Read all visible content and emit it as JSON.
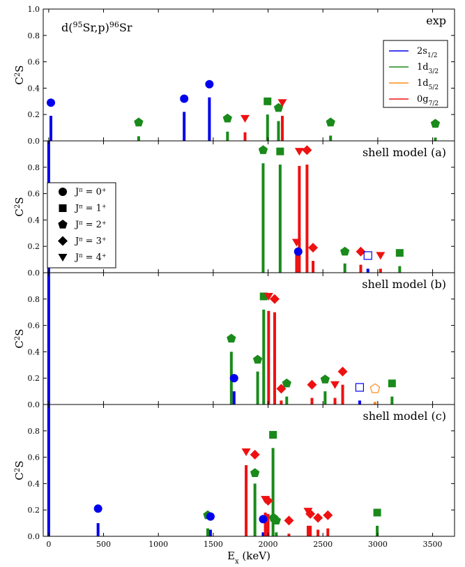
{
  "chart_data": {
    "type": "bar",
    "xlabel_base": "E",
    "xlabel_sub": "x",
    "xlabel_unit": " (keV)",
    "ylabel_base": "C",
    "ylabel_sup": "2",
    "ylabel_tail": "S",
    "xlim": [
      -50,
      3700
    ],
    "xticks": [
      0,
      500,
      1000,
      1500,
      2000,
      2500,
      3000,
      3500
    ],
    "reaction": {
      "pre": "d(",
      "sup1": "95",
      "mid": "Sr,p)",
      "sup2": "96",
      "post": "Sr"
    },
    "orbital_legend": [
      {
        "base": "2s",
        "sub": "1/2",
        "color": "#0000ee"
      },
      {
        "base": "1d",
        "sub": "3/2",
        "color": "#1a8a1a"
      },
      {
        "base": "1d",
        "sub": "5/2",
        "color": "#ff8c1a"
      },
      {
        "base": "0g",
        "sub": "7/2",
        "color": "#ee1111"
      }
    ],
    "spin_legend": [
      {
        "shape": "circle",
        "base": "J",
        "sup1": "π",
        "mid": " = 0",
        "sup2": "+"
      },
      {
        "shape": "square",
        "base": "J",
        "sup1": "π",
        "mid": " = 1",
        "sup2": "+"
      },
      {
        "shape": "pentagon",
        "base": "J",
        "sup1": "π",
        "mid": " = 2",
        "sup2": "+"
      },
      {
        "shape": "diamond",
        "base": "J",
        "sup1": "π",
        "mid": " = 3",
        "sup2": "+"
      },
      {
        "shape": "triangle",
        "base": "J",
        "sup1": "π",
        "mid": " = 4",
        "sup2": "+"
      }
    ],
    "panels": [
      {
        "label": "exp",
        "ylim": [
          0,
          1.0
        ],
        "yticks": [
          0.0,
          0.2,
          0.4,
          0.6,
          0.8,
          1.0
        ],
        "bars": [
          {
            "x": 20,
            "y": 0.19,
            "orbital": "2s1/2"
          },
          {
            "x": 820,
            "y": 0.035,
            "orbital": "1d3/2"
          },
          {
            "x": 1235,
            "y": 0.22,
            "orbital": "2s1/2"
          },
          {
            "x": 1465,
            "y": 0.33,
            "orbital": "2s1/2"
          },
          {
            "x": 1630,
            "y": 0.07,
            "orbital": "1d3/2"
          },
          {
            "x": 1790,
            "y": 0.065,
            "orbital": "0g7/2"
          },
          {
            "x": 1995,
            "y": 0.2,
            "orbital": "1d3/2"
          },
          {
            "x": 2095,
            "y": 0.15,
            "orbital": "1d3/2"
          },
          {
            "x": 2130,
            "y": 0.19,
            "orbital": "0g7/2"
          },
          {
            "x": 2570,
            "y": 0.04,
            "orbital": "1d3/2"
          },
          {
            "x": 3525,
            "y": 0.025,
            "orbital": "1d3/2"
          }
        ],
        "markers": [
          {
            "x": 20,
            "y": 0.29,
            "shape": "circle",
            "orbital": "2s1/2",
            "filled": true
          },
          {
            "x": 820,
            "y": 0.14,
            "shape": "pentagon",
            "orbital": "1d3/2",
            "filled": true
          },
          {
            "x": 1235,
            "y": 0.32,
            "shape": "circle",
            "orbital": "2s1/2",
            "filled": true
          },
          {
            "x": 1465,
            "y": 0.43,
            "shape": "circle",
            "orbital": "2s1/2",
            "filled": true
          },
          {
            "x": 1630,
            "y": 0.17,
            "shape": "pentagon",
            "orbital": "1d3/2",
            "filled": true
          },
          {
            "x": 1790,
            "y": 0.17,
            "shape": "triangle",
            "orbital": "0g7/2",
            "filled": true
          },
          {
            "x": 1995,
            "y": 0.3,
            "shape": "square",
            "orbital": "1d3/2",
            "filled": true
          },
          {
            "x": 2095,
            "y": 0.25,
            "shape": "pentagon",
            "orbital": "1d3/2",
            "filled": true
          },
          {
            "x": 2130,
            "y": 0.29,
            "shape": "triangle",
            "orbital": "0g7/2",
            "filled": true
          },
          {
            "x": 2570,
            "y": 0.14,
            "shape": "pentagon",
            "orbital": "1d3/2",
            "filled": true
          },
          {
            "x": 3525,
            "y": 0.13,
            "shape": "pentagon",
            "orbital": "1d3/2",
            "filled": true
          }
        ]
      },
      {
        "label": "shell model (a)",
        "ylim": [
          0,
          1.0
        ],
        "yticks": [
          0.0,
          0.2,
          0.4,
          0.6,
          0.8
        ],
        "bars": [
          {
            "x": 0,
            "y": 1.0,
            "orbital": "2s1/2"
          },
          {
            "x": 1955,
            "y": 0.83,
            "orbital": "1d3/2"
          },
          {
            "x": 2110,
            "y": 0.82,
            "orbital": "1d3/2"
          },
          {
            "x": 2260,
            "y": 0.18,
            "orbital": "0g7/2"
          },
          {
            "x": 2285,
            "y": 0.81,
            "orbital": "0g7/2"
          },
          {
            "x": 2355,
            "y": 0.82,
            "orbital": "0g7/2"
          },
          {
            "x": 2410,
            "y": 0.09,
            "orbital": "0g7/2"
          },
          {
            "x": 2700,
            "y": 0.07,
            "orbital": "1d3/2"
          },
          {
            "x": 2845,
            "y": 0.06,
            "orbital": "0g7/2"
          },
          {
            "x": 2910,
            "y": 0.03,
            "orbital": "2s1/2"
          },
          {
            "x": 3025,
            "y": 0.03,
            "orbital": "0g7/2"
          },
          {
            "x": 3200,
            "y": 0.05,
            "orbital": "1d3/2"
          }
        ],
        "markers": [
          {
            "x": 1955,
            "y": 0.93,
            "shape": "pentagon",
            "orbital": "1d3/2",
            "filled": true
          },
          {
            "x": 2110,
            "y": 0.92,
            "shape": "square",
            "orbital": "1d3/2",
            "filled": true
          },
          {
            "x": 2285,
            "y": 0.92,
            "shape": "triangle",
            "orbital": "0g7/2",
            "filled": true
          },
          {
            "x": 2355,
            "y": 0.93,
            "shape": "diamond",
            "orbital": "0g7/2",
            "filled": true
          },
          {
            "x": 2260,
            "y": 0.23,
            "shape": "triangle",
            "orbital": "0g7/2",
            "filled": true
          },
          {
            "x": 2275,
            "y": 0.16,
            "shape": "circle",
            "orbital": "2s1/2",
            "filled": true
          },
          {
            "x": 2410,
            "y": 0.19,
            "shape": "diamond",
            "orbital": "0g7/2",
            "filled": true
          },
          {
            "x": 2700,
            "y": 0.16,
            "shape": "pentagon",
            "orbital": "1d3/2",
            "filled": true
          },
          {
            "x": 2845,
            "y": 0.16,
            "shape": "diamond",
            "orbital": "0g7/2",
            "filled": true
          },
          {
            "x": 2910,
            "y": 0.13,
            "shape": "square",
            "orbital": "2s1/2",
            "filled": false
          },
          {
            "x": 3025,
            "y": 0.13,
            "shape": "triangle",
            "orbital": "0g7/2",
            "filled": true
          },
          {
            "x": 3200,
            "y": 0.15,
            "shape": "square",
            "orbital": "1d3/2",
            "filled": true
          }
        ]
      },
      {
        "label": "shell model (b)",
        "ylim": [
          0,
          1.0
        ],
        "yticks": [
          0.0,
          0.2,
          0.4,
          0.6,
          0.8
        ],
        "bars": [
          {
            "x": 0,
            "y": 1.0,
            "orbital": "2s1/2"
          },
          {
            "x": 1665,
            "y": 0.4,
            "orbital": "1d3/2"
          },
          {
            "x": 1690,
            "y": 0.1,
            "orbital": "2s1/2"
          },
          {
            "x": 1905,
            "y": 0.25,
            "orbital": "1d3/2"
          },
          {
            "x": 1960,
            "y": 0.72,
            "orbital": "1d3/2"
          },
          {
            "x": 2005,
            "y": 0.71,
            "orbital": "0g7/2"
          },
          {
            "x": 2060,
            "y": 0.7,
            "orbital": "0g7/2"
          },
          {
            "x": 2120,
            "y": 0.03,
            "orbital": "0g7/2"
          },
          {
            "x": 2170,
            "y": 0.06,
            "orbital": "1d3/2"
          },
          {
            "x": 2400,
            "y": 0.05,
            "orbital": "0g7/2"
          },
          {
            "x": 2520,
            "y": 0.1,
            "orbital": "1d3/2"
          },
          {
            "x": 2610,
            "y": 0.05,
            "orbital": "0g7/2"
          },
          {
            "x": 2680,
            "y": 0.15,
            "orbital": "0g7/2"
          },
          {
            "x": 2835,
            "y": 0.03,
            "orbital": "2s1/2"
          },
          {
            "x": 2975,
            "y": 0.02,
            "orbital": "1d5/2"
          },
          {
            "x": 3130,
            "y": 0.06,
            "orbital": "1d3/2"
          }
        ],
        "markers": [
          {
            "x": 1665,
            "y": 0.5,
            "shape": "pentagon",
            "orbital": "1d3/2",
            "filled": true
          },
          {
            "x": 1690,
            "y": 0.2,
            "shape": "circle",
            "orbital": "2s1/2",
            "filled": true
          },
          {
            "x": 1905,
            "y": 0.34,
            "shape": "pentagon",
            "orbital": "1d3/2",
            "filled": true
          },
          {
            "x": 1960,
            "y": 0.82,
            "shape": "square",
            "orbital": "1d3/2",
            "filled": true
          },
          {
            "x": 2005,
            "y": 0.82,
            "shape": "triangle",
            "orbital": "0g7/2",
            "filled": true
          },
          {
            "x": 2060,
            "y": 0.8,
            "shape": "diamond",
            "orbital": "0g7/2",
            "filled": true
          },
          {
            "x": 2120,
            "y": 0.12,
            "shape": "diamond",
            "orbital": "0g7/2",
            "filled": true
          },
          {
            "x": 2170,
            "y": 0.16,
            "shape": "pentagon",
            "orbital": "1d3/2",
            "filled": true
          },
          {
            "x": 2400,
            "y": 0.15,
            "shape": "diamond",
            "orbital": "0g7/2",
            "filled": true
          },
          {
            "x": 2520,
            "y": 0.19,
            "shape": "pentagon",
            "orbital": "1d3/2",
            "filled": true
          },
          {
            "x": 2610,
            "y": 0.15,
            "shape": "triangle",
            "orbital": "0g7/2",
            "filled": true
          },
          {
            "x": 2680,
            "y": 0.25,
            "shape": "diamond",
            "orbital": "0g7/2",
            "filled": true
          },
          {
            "x": 2835,
            "y": 0.13,
            "shape": "square",
            "orbital": "2s1/2",
            "filled": false
          },
          {
            "x": 2975,
            "y": 0.12,
            "shape": "pentagon",
            "orbital": "1d5/2",
            "filled": false
          },
          {
            "x": 3130,
            "y": 0.16,
            "shape": "square",
            "orbital": "1d3/2",
            "filled": true
          }
        ]
      },
      {
        "label": "shell model (c)",
        "ylim": [
          0,
          1.0
        ],
        "yticks": [
          0.0,
          0.2,
          0.4,
          0.6,
          0.8
        ],
        "bars": [
          {
            "x": 0,
            "y": 1.0,
            "orbital": "2s1/2"
          },
          {
            "x": 450,
            "y": 0.1,
            "orbital": "2s1/2"
          },
          {
            "x": 1450,
            "y": 0.06,
            "orbital": "1d3/2"
          },
          {
            "x": 1475,
            "y": 0.05,
            "orbital": "2s1/2"
          },
          {
            "x": 1800,
            "y": 0.54,
            "orbital": "0g7/2"
          },
          {
            "x": 1880,
            "y": 0.4,
            "orbital": "1d3/2"
          },
          {
            "x": 1955,
            "y": 0.03,
            "orbital": "2s1/2"
          },
          {
            "x": 1975,
            "y": 0.18,
            "orbital": "0g7/2"
          },
          {
            "x": 2000,
            "y": 0.17,
            "orbital": "0g7/2"
          },
          {
            "x": 2045,
            "y": 0.67,
            "orbital": "1d3/2"
          },
          {
            "x": 2075,
            "y": 0.03,
            "orbital": "1d3/2"
          },
          {
            "x": 2190,
            "y": 0.02,
            "orbital": "0g7/2"
          },
          {
            "x": 2365,
            "y": 0.08,
            "orbital": "0g7/2"
          },
          {
            "x": 2385,
            "y": 0.08,
            "orbital": "0g7/2"
          },
          {
            "x": 2455,
            "y": 0.05,
            "orbital": "0g7/2"
          },
          {
            "x": 2545,
            "y": 0.06,
            "orbital": "0g7/2"
          },
          {
            "x": 2995,
            "y": 0.08,
            "orbital": "1d3/2"
          }
        ],
        "markers": [
          {
            "x": 450,
            "y": 0.21,
            "shape": "circle",
            "orbital": "2s1/2",
            "filled": true
          },
          {
            "x": 1450,
            "y": 0.16,
            "shape": "pentagon",
            "orbital": "1d3/2",
            "filled": true
          },
          {
            "x": 1475,
            "y": 0.15,
            "shape": "circle",
            "orbital": "2s1/2",
            "filled": true
          },
          {
            "x": 1800,
            "y": 0.64,
            "shape": "triangle",
            "orbital": "0g7/2",
            "filled": true
          },
          {
            "x": 1880,
            "y": 0.48,
            "shape": "pentagon",
            "orbital": "1d3/2",
            "filled": true
          },
          {
            "x": 1880,
            "y": 0.62,
            "shape": "diamond",
            "orbital": "0g7/2",
            "filled": true
          },
          {
            "x": 1955,
            "y": 0.13,
            "shape": "circle",
            "orbital": "2s1/2",
            "filled": true
          },
          {
            "x": 1975,
            "y": 0.28,
            "shape": "triangle",
            "orbital": "0g7/2",
            "filled": true
          },
          {
            "x": 2000,
            "y": 0.27,
            "shape": "diamond",
            "orbital": "0g7/2",
            "filled": true
          },
          {
            "x": 2045,
            "y": 0.77,
            "shape": "square",
            "orbital": "1d3/2",
            "filled": true
          },
          {
            "x": 2050,
            "y": 0.14,
            "shape": "pentagon",
            "orbital": "1d3/2",
            "filled": true
          },
          {
            "x": 2075,
            "y": 0.12,
            "shape": "pentagon",
            "orbital": "1d3/2",
            "filled": true
          },
          {
            "x": 2190,
            "y": 0.12,
            "shape": "diamond",
            "orbital": "0g7/2",
            "filled": true
          },
          {
            "x": 2365,
            "y": 0.19,
            "shape": "triangle",
            "orbital": "0g7/2",
            "filled": true
          },
          {
            "x": 2385,
            "y": 0.17,
            "shape": "diamond",
            "orbital": "0g7/2",
            "filled": true
          },
          {
            "x": 2455,
            "y": 0.14,
            "shape": "diamond",
            "orbital": "0g7/2",
            "filled": true
          },
          {
            "x": 2545,
            "y": 0.16,
            "shape": "diamond",
            "orbital": "0g7/2",
            "filled": true
          },
          {
            "x": 2995,
            "y": 0.18,
            "shape": "square",
            "orbital": "1d3/2",
            "filled": true
          }
        ]
      }
    ],
    "orbital_colors": {
      "2s1/2": "#0000ee",
      "1d3/2": "#1a8a1a",
      "1d5/2": "#ff8c1a",
      "0g7/2": "#ee1111"
    }
  }
}
